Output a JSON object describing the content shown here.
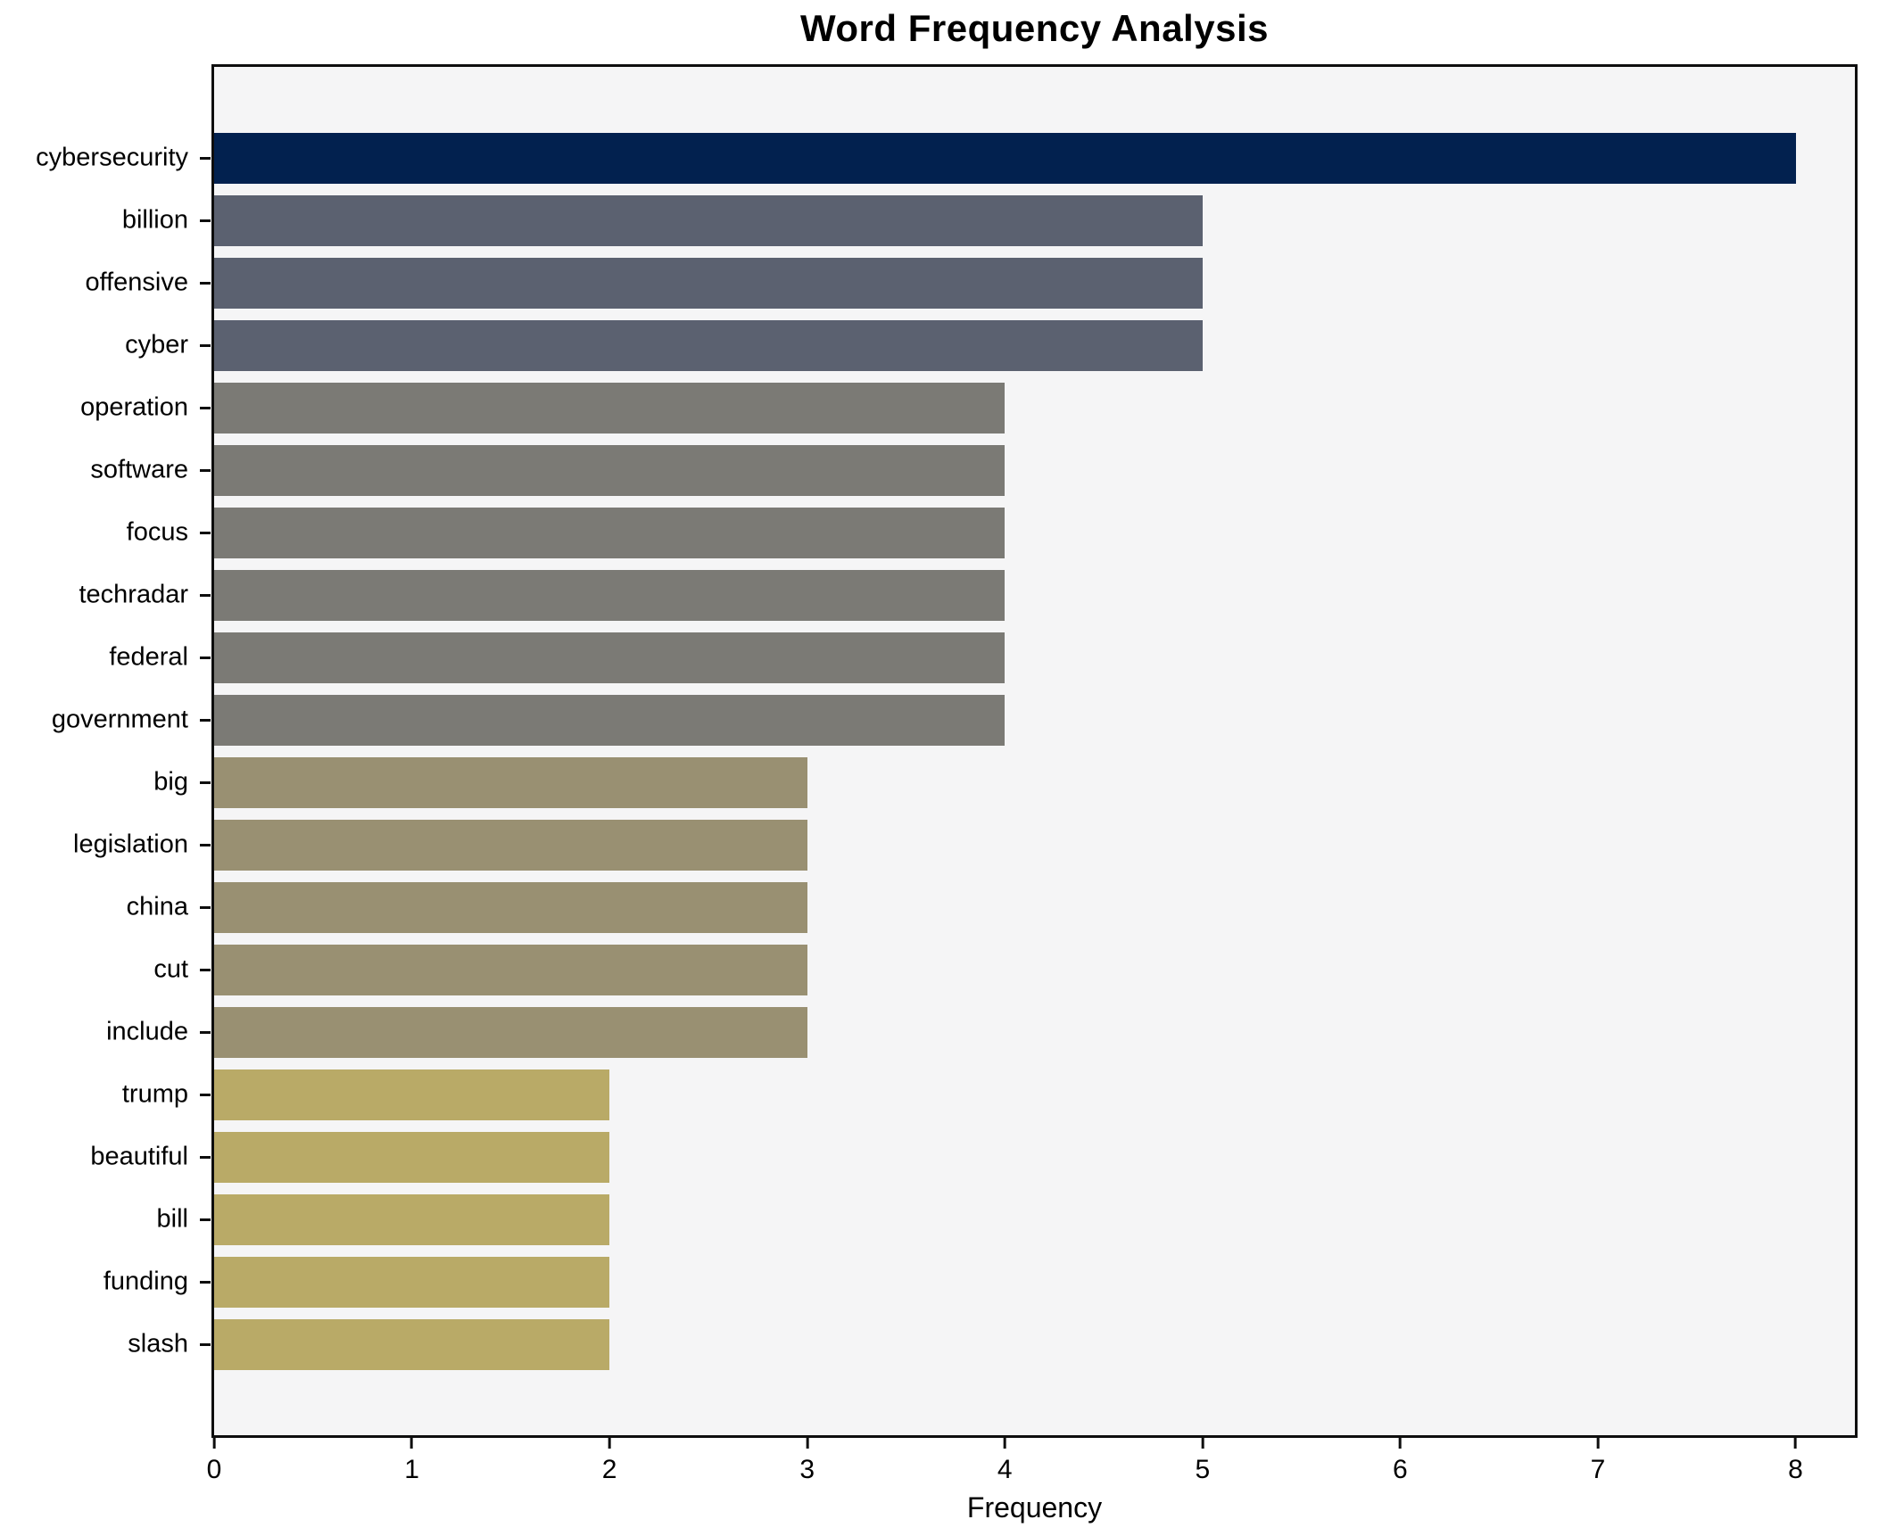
{
  "title": "Word Frequency Analysis",
  "xlabel": "Frequency",
  "chart_data": {
    "type": "bar",
    "orientation": "horizontal",
    "title": "Word Frequency Analysis",
    "xlabel": "Frequency",
    "ylabel": "",
    "categories": [
      "cybersecurity",
      "billion",
      "offensive",
      "cyber",
      "operation",
      "software",
      "focus",
      "techradar",
      "federal",
      "government",
      "big",
      "legislation",
      "china",
      "cut",
      "include",
      "trump",
      "beautiful",
      "bill",
      "funding",
      "slash"
    ],
    "values": [
      8,
      5,
      5,
      5,
      4,
      4,
      4,
      4,
      4,
      4,
      3,
      3,
      3,
      3,
      3,
      2,
      2,
      2,
      2,
      2
    ],
    "xlim": [
      0,
      8.3
    ],
    "x_ticks": [
      0,
      1,
      2,
      3,
      4,
      5,
      6,
      7,
      8
    ],
    "grid": false,
    "legend": "none",
    "bar_colors_by_value": {
      "8": "#02214f",
      "5": "#5b6170",
      "4": "#7b7a75",
      "3": "#999072",
      "2": "#b9aa67"
    }
  },
  "colors": {
    "plot_background": "#f5f5f6",
    "figure_background": "#ffffff",
    "spine": "#0e0e0e",
    "text": "#000000"
  }
}
